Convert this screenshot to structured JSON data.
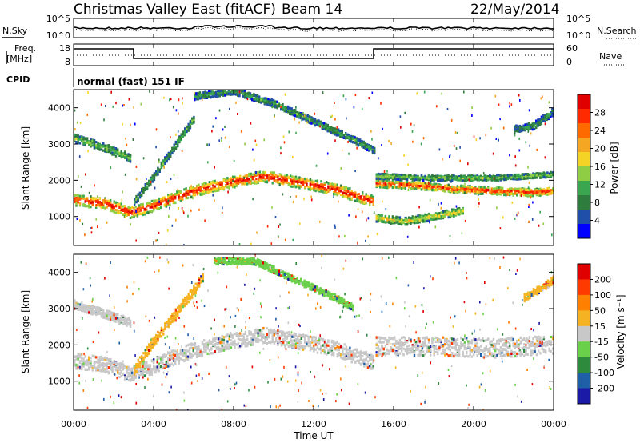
{
  "header": {
    "station": "Christmas Valley East (fitACF)",
    "beam": "Beam 14",
    "date": "22/May/2014"
  },
  "side_labels": {
    "nsky": "N.Sky",
    "freq_line1": "Freq.",
    "freq_line2": "[MHz]",
    "cpid": "CPID",
    "nsearch": "N.Search",
    "nave": "Nave"
  },
  "cpid_text": "normal (fast) 151 IF",
  "noise_axis": {
    "top": "10^5",
    "bottom": "10^0"
  },
  "freq_axis": {
    "left_ticks": [
      "18",
      "8"
    ],
    "right_ticks": [
      "60",
      "0"
    ]
  },
  "x_axis": {
    "label": "Time UT",
    "ticks": [
      "00:00",
      "04:00",
      "08:00",
      "12:00",
      "16:00",
      "20:00",
      "00:00"
    ],
    "range_hours": [
      0,
      24
    ]
  },
  "chart_data": [
    {
      "type": "heatmap",
      "title": "Power",
      "ylabel": "Slant Range [km]",
      "yticks": [
        1000,
        2000,
        3000,
        4000
      ],
      "ylim": [
        200,
        4500
      ],
      "colorbar_label": "Power [dB]",
      "colorbar_ticks": [
        "28",
        "24",
        "20",
        "16",
        "12",
        "8",
        "4"
      ],
      "colors": [
        "#0000ff",
        "#1f4fa8",
        "#2e7d3e",
        "#3aa64f",
        "#8fce44",
        "#f5d226",
        "#f5a623",
        "#ff6a00",
        "#ff2a00",
        "#e00000"
      ],
      "bands": [
        {
          "name": "main",
          "points": [
            [
              0,
              1450
            ],
            [
              1.5,
              1350
            ],
            [
              2.8,
              1100
            ],
            [
              3.5,
              1200
            ],
            [
              5,
              1500
            ],
            [
              6,
              1700
            ],
            [
              8,
              1950
            ],
            [
              9.5,
              2100
            ],
            [
              11,
              1950
            ],
            [
              13,
              1750
            ],
            [
              15,
              1400
            ]
          ],
          "width": 300,
          "peak": 28
        },
        {
          "name": "morning-upper",
          "points": [
            [
              0,
              3150
            ],
            [
              1.5,
              2900
            ],
            [
              2.8,
              2600
            ]
          ],
          "width": 220,
          "peak": 12
        },
        {
          "name": "afternoon-main",
          "points": [
            [
              15.1,
              1900
            ],
            [
              17,
              1850
            ],
            [
              19,
              1750
            ],
            [
              21,
              1700
            ],
            [
              23,
              1650
            ],
            [
              24,
              1700
            ]
          ],
          "width": 200,
          "peak": 26
        },
        {
          "name": "afternoon-upper",
          "points": [
            [
              15.1,
              2100
            ],
            [
              18,
              2050
            ],
            [
              21,
              2050
            ],
            [
              24,
              2150
            ]
          ],
          "width": 140,
          "peak": 12
        },
        {
          "name": "afternoon-lower",
          "points": [
            [
              15.1,
              950
            ],
            [
              16.5,
              850
            ],
            [
              18,
              1000
            ],
            [
              19.5,
              1150
            ]
          ],
          "width": 200,
          "peak": 16
        },
        {
          "name": "arc-upper",
          "points": [
            [
              6,
              4300
            ],
            [
              8,
              4450
            ],
            [
              10,
              4100
            ],
            [
              12,
              3600
            ],
            [
              14,
              3100
            ],
            [
              15,
              2800
            ]
          ],
          "width": 180,
          "peak": 9
        },
        {
          "name": "evening-upper",
          "points": [
            [
              22,
              3400
            ],
            [
              23,
              3500
            ],
            [
              24,
              3900
            ]
          ],
          "width": 200,
          "peak": 8
        },
        {
          "name": "morning-diagonal",
          "points": [
            [
              3,
              1400
            ],
            [
              4,
              2100
            ],
            [
              5,
              2900
            ],
            [
              6,
              3700
            ]
          ],
          "width": 200,
          "peak": 10
        }
      ]
    },
    {
      "type": "heatmap",
      "title": "Velocity",
      "ylabel": "Slant Range [km]",
      "yticks": [
        1000,
        2000,
        3000,
        4000
      ],
      "ylim": [
        200,
        4500
      ],
      "colorbar_label": "Velocity [m s⁻¹]",
      "colorbar_ticks": [
        "200",
        "100",
        "50",
        "15",
        "-15",
        "-50",
        "-100",
        "-200"
      ],
      "colors": [
        "#1a1aa6",
        "#1f5fa8",
        "#2e8b3e",
        "#6ad04a",
        "#c8c8c8",
        "#f5b223",
        "#ff7f00",
        "#ff3a00",
        "#e00000"
      ],
      "bands": [
        {
          "name": "main-gray",
          "points": [
            [
              0,
              1550
            ],
            [
              1.5,
              1450
            ],
            [
              2.8,
              1200
            ],
            [
              3.5,
              1300
            ],
            [
              5,
              1650
            ],
            [
              6,
              1850
            ],
            [
              8,
              2100
            ],
            [
              9.5,
              2250
            ],
            [
              11,
              2100
            ],
            [
              13,
              1900
            ],
            [
              15,
              1500
            ]
          ],
          "width": 420,
          "color": "#c8c8c8"
        },
        {
          "name": "morning-gray",
          "points": [
            [
              0,
              3100
            ],
            [
              1.5,
              2850
            ],
            [
              2.8,
              2600
            ]
          ],
          "width": 240,
          "color": "#c8c8c8"
        },
        {
          "name": "afternoon-gray",
          "points": [
            [
              15.1,
              1950
            ],
            [
              18,
              1950
            ],
            [
              21,
              1900
            ],
            [
              24,
              2000
            ]
          ],
          "width": 520,
          "color": "#c8c8c8"
        },
        {
          "name": "morning-orange",
          "points": [
            [
              3,
              1300
            ],
            [
              4,
              2100
            ],
            [
              5,
              2800
            ],
            [
              6,
              3500
            ],
            [
              6.5,
              3900
            ]
          ],
          "width": 260,
          "color": "#f5b223"
        },
        {
          "name": "arc-green",
          "points": [
            [
              7,
              4300
            ],
            [
              9,
              4300
            ],
            [
              11,
              3800
            ],
            [
              13,
              3300
            ],
            [
              14,
              3000
            ]
          ],
          "width": 180,
          "color": "#6ad04a"
        },
        {
          "name": "evening-orange",
          "points": [
            [
              22.5,
              3300
            ],
            [
              23.5,
              3600
            ],
            [
              24,
              3800
            ]
          ],
          "width": 200,
          "color": "#f5b223"
        }
      ]
    }
  ]
}
